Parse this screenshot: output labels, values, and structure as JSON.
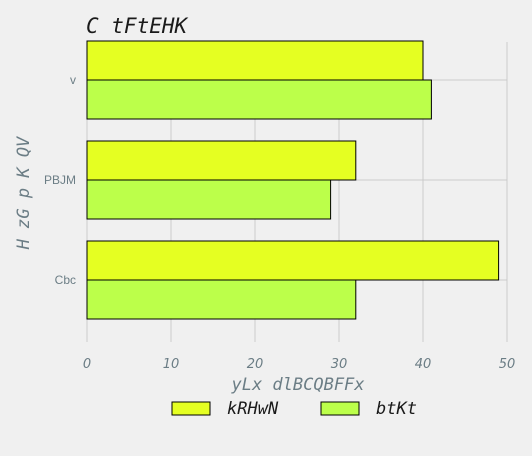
{
  "chart_data": {
    "type": "bar",
    "orientation": "horizontal",
    "title": "C tFtEHK",
    "xlabel": "yLx dlBCQBFFx",
    "ylabel": "H zG p K QV",
    "categories": [
      "v",
      "PBJM",
      "Cbc"
    ],
    "series": [
      {
        "name": "kRHwN",
        "values": [
          40,
          32,
          49
        ],
        "color": "#e5ff22"
      },
      {
        "name": "btKt",
        "values": [
          41,
          29,
          32
        ],
        "color": "#bcff4a"
      }
    ],
    "xlim": [
      0,
      50
    ],
    "xticks": [
      0,
      10,
      20,
      30,
      40,
      50
    ],
    "grid": true,
    "legend_position": "bottom"
  }
}
